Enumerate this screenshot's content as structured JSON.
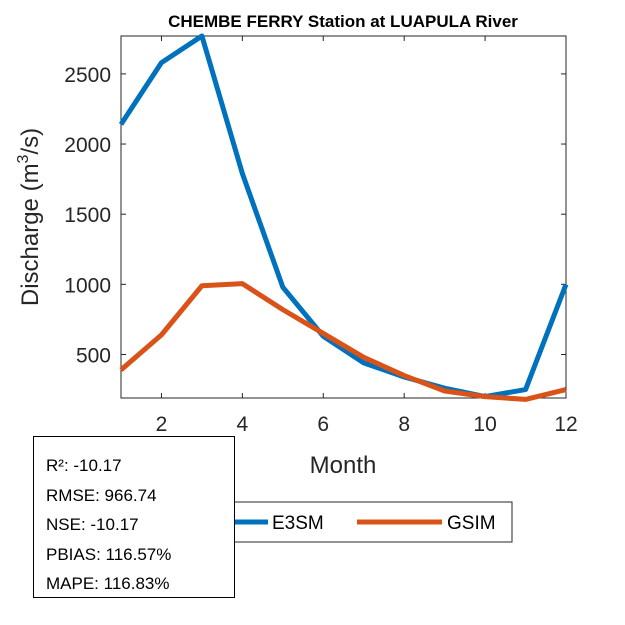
{
  "chart_data": {
    "type": "line",
    "title": "CHEMBE FERRY  Station at  LUAPULA  River",
    "xlabel": "Month",
    "ylabel": "Discharge (m",
    "ylabel_sup": "3",
    "ylabel_end": "/s)",
    "xlim": [
      1,
      12
    ],
    "ylim": [
      190,
      2770
    ],
    "xticks": [
      2,
      4,
      6,
      8,
      10,
      12
    ],
    "yticks": [
      500,
      1000,
      1500,
      2000,
      2500
    ],
    "x": [
      1,
      2,
      3,
      4,
      5,
      6,
      7,
      8,
      9,
      10,
      11,
      12
    ],
    "series": [
      {
        "name": "E3SM",
        "color": "#0072BD",
        "values": [
          2140,
          2580,
          2770,
          1790,
          980,
          630,
          440,
          340,
          260,
          200,
          250,
          1000
        ]
      },
      {
        "name": "GSIM",
        "color": "#D95319",
        "values": [
          390,
          640,
          990,
          1005,
          820,
          650,
          480,
          350,
          240,
          200,
          180,
          250
        ]
      }
    ],
    "legend_position": "bottom-center"
  },
  "stats": [
    "R²: -10.17",
    "RMSE: 966.74",
    "NSE: -10.17",
    "PBIAS: 116.57%",
    "MAPE: 116.83%"
  ]
}
